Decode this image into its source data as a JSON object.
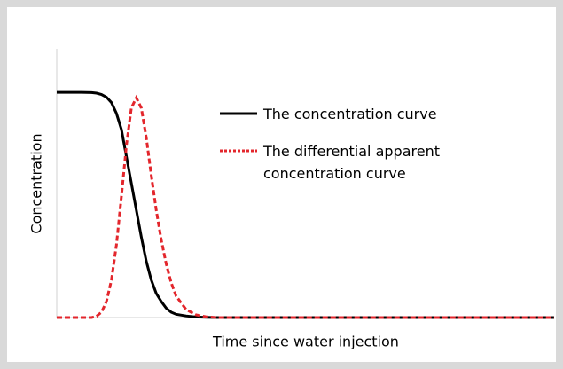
{
  "chart_data": {
    "type": "line",
    "xlabel": "Time since water injection",
    "ylabel": "Concentration",
    "x": [
      0,
      5,
      7,
      8,
      9,
      10,
      11,
      12,
      13,
      14,
      15,
      16,
      17,
      18,
      19,
      20,
      21,
      22,
      23,
      24,
      26,
      28,
      30,
      32,
      100
    ],
    "xlim": [
      0,
      100
    ],
    "ylim": [
      0,
      1
    ],
    "xticks": [],
    "yticks": [],
    "grid": false,
    "legend": "upper right",
    "series": [
      {
        "name": "The concentration curve",
        "color": "#000000",
        "style": "solid",
        "values": [
          0.838,
          0.838,
          0.837,
          0.835,
          0.83,
          0.82,
          0.8,
          0.76,
          0.7,
          0.6,
          0.5,
          0.4,
          0.3,
          0.21,
          0.14,
          0.09,
          0.06,
          0.035,
          0.02,
          0.012,
          0.006,
          0.002,
          0.001,
          0,
          0
        ]
      },
      {
        "name": "The differential apparent concentration curve",
        "color": "#e3262c",
        "style": "dashed",
        "values": [
          0,
          0,
          0,
          0.005,
          0.02,
          0.06,
          0.14,
          0.27,
          0.45,
          0.64,
          0.78,
          0.818,
          0.78,
          0.67,
          0.53,
          0.4,
          0.29,
          0.2,
          0.13,
          0.08,
          0.03,
          0.01,
          0.003,
          0,
          0
        ]
      }
    ]
  }
}
